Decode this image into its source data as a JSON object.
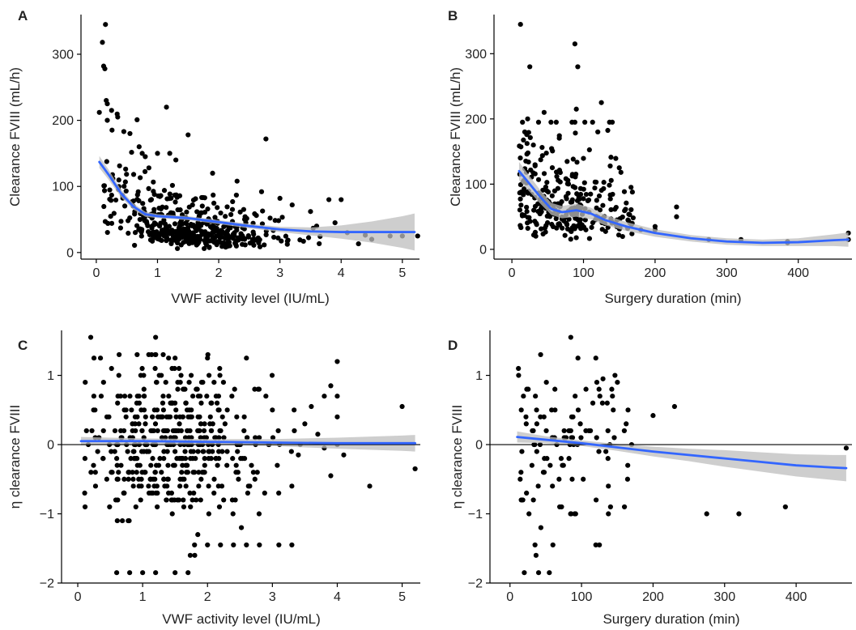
{
  "colors": {
    "points": "#000000",
    "smooth": "#3366ff",
    "band": "#bdbdbd",
    "axis": "#000000"
  },
  "chart_data": [
    {
      "panel": "A",
      "type": "scatter",
      "xlabel": "VWF activity level (IU/mL)",
      "ylabel": "Clearance FVIII (mL/h)",
      "xlim": [
        -0.25,
        5.28
      ],
      "ylim": [
        -10,
        360
      ],
      "xticks": [
        0,
        1,
        2,
        3,
        4,
        5
      ],
      "yticks": [
        0,
        100,
        200,
        300
      ],
      "zero_line": false,
      "grid": false,
      "legend": "none",
      "generated_points": {
        "count": 470,
        "x_dist": "gamma",
        "x_min": 0.03,
        "x_max": 5.2,
        "y_model": "clearance_vwf",
        "y_min": 6,
        "y_max": 230,
        "seed": 11
      },
      "points": [
        [
          0.15,
          345
        ],
        [
          0.1,
          318
        ],
        [
          0.12,
          282
        ],
        [
          0.14,
          278
        ],
        [
          0.05,
          212
        ],
        [
          0.18,
          225
        ],
        [
          0.25,
          215
        ],
        [
          0.35,
          205
        ],
        [
          0.18,
          200
        ],
        [
          0.45,
          183
        ],
        [
          0.55,
          180
        ],
        [
          0.7,
          160
        ],
        [
          0.75,
          150
        ],
        [
          0.8,
          145
        ],
        [
          1.5,
          178
        ],
        [
          1.0,
          150
        ],
        [
          1.3,
          140
        ],
        [
          1.2,
          150
        ],
        [
          1.9,
          120
        ],
        [
          2.3,
          108
        ],
        [
          2.7,
          92
        ],
        [
          3.0,
          82
        ],
        [
          3.2,
          72
        ],
        [
          3.5,
          62
        ],
        [
          3.8,
          80
        ],
        [
          4.0,
          80
        ],
        [
          4.5,
          20
        ],
        [
          4.8,
          25
        ],
        [
          5.0,
          25
        ],
        [
          5.25,
          25
        ],
        [
          3.6,
          40
        ],
        [
          3.9,
          45
        ],
        [
          4.1,
          30
        ]
      ],
      "smooth": [
        [
          0.05,
          137
        ],
        [
          0.2,
          118
        ],
        [
          0.4,
          90
        ],
        [
          0.6,
          70
        ],
        [
          0.8,
          58
        ],
        [
          1.0,
          55
        ],
        [
          1.5,
          52
        ],
        [
          2.0,
          46
        ],
        [
          2.5,
          40
        ],
        [
          3.0,
          35
        ],
        [
          3.5,
          32
        ],
        [
          4.0,
          31
        ],
        [
          4.5,
          31
        ],
        [
          5.0,
          31
        ],
        [
          5.2,
          31
        ]
      ],
      "band_half_width": [
        [
          0.05,
          9
        ],
        [
          0.5,
          5
        ],
        [
          1.0,
          3
        ],
        [
          2.0,
          3
        ],
        [
          3.0,
          4
        ],
        [
          3.5,
          6
        ],
        [
          4.0,
          10
        ],
        [
          4.5,
          16
        ],
        [
          5.0,
          24
        ],
        [
          5.2,
          28
        ]
      ]
    },
    {
      "panel": "B",
      "type": "scatter",
      "xlabel": "Surgery duration (min)",
      "ylabel": "Clearance FVIII (mL/h)",
      "xlim": [
        -25,
        475
      ],
      "ylim": [
        -15,
        360
      ],
      "xticks": [
        0,
        100,
        200,
        300,
        400
      ],
      "yticks": [
        0,
        100,
        200,
        300
      ],
      "zero_line": false,
      "grid": false,
      "legend": "none",
      "generated_points": {
        "count": 300,
        "x_dist": "surgery",
        "x_min": 10,
        "x_max": 170,
        "y_model": "clearance_surgery",
        "y_min": 6,
        "y_max": 195,
        "seed": 23
      },
      "points": [
        [
          12,
          345
        ],
        [
          88,
          315
        ],
        [
          92,
          280
        ],
        [
          25,
          280
        ],
        [
          90,
          215
        ],
        [
          125,
          225
        ],
        [
          45,
          210
        ],
        [
          88,
          195
        ],
        [
          120,
          180
        ],
        [
          150,
          125
        ],
        [
          18,
          180
        ],
        [
          22,
          200
        ],
        [
          30,
          160
        ],
        [
          230,
          65
        ],
        [
          230,
          50
        ],
        [
          200,
          30
        ],
        [
          200,
          35
        ],
        [
          275,
          15
        ],
        [
          320,
          15
        ],
        [
          385,
          10
        ],
        [
          385,
          12
        ],
        [
          470,
          15
        ],
        [
          470,
          25
        ],
        [
          165,
          40
        ],
        [
          180,
          30
        ]
      ],
      "smooth": [
        [
          10,
          120
        ],
        [
          25,
          100
        ],
        [
          40,
          80
        ],
        [
          55,
          62
        ],
        [
          70,
          57
        ],
        [
          90,
          60
        ],
        [
          110,
          55
        ],
        [
          130,
          45
        ],
        [
          160,
          35
        ],
        [
          200,
          25
        ],
        [
          250,
          17
        ],
        [
          300,
          12
        ],
        [
          350,
          10
        ],
        [
          400,
          11
        ],
        [
          450,
          14
        ],
        [
          470,
          15
        ]
      ],
      "band_half_width": [
        [
          10,
          14
        ],
        [
          50,
          9
        ],
        [
          90,
          10
        ],
        [
          130,
          8
        ],
        [
          180,
          6
        ],
        [
          250,
          5
        ],
        [
          300,
          5
        ],
        [
          350,
          5
        ],
        [
          400,
          6
        ],
        [
          450,
          9
        ],
        [
          470,
          11
        ]
      ]
    },
    {
      "panel": "C",
      "type": "scatter",
      "xlabel": "VWF activity level (IU/mL)",
      "ylabel": "η clearance FVIII",
      "xlim": [
        -0.25,
        5.28
      ],
      "ylim": [
        -2,
        1.65
      ],
      "xticks": [
        0,
        1,
        2,
        3,
        4,
        5
      ],
      "yticks": [
        -2,
        -1,
        0,
        1
      ],
      "zero_line": true,
      "grid": false,
      "legend": "none",
      "generated_points": {
        "count": 460,
        "x_dist": "gamma",
        "x_min": 0.02,
        "x_max": 4.0,
        "y_model": "eta",
        "y_min": -1.85,
        "y_max": 1.3,
        "seed": 37
      },
      "points": [
        [
          0.2,
          1.55
        ],
        [
          1.2,
          1.55
        ],
        [
          0.6,
          -1.85
        ],
        [
          0.8,
          -1.85
        ],
        [
          1.0,
          -1.85
        ],
        [
          1.2,
          -1.85
        ],
        [
          1.5,
          -1.85
        ],
        [
          1.7,
          -1.85
        ],
        [
          2.0,
          -1.45
        ],
        [
          2.2,
          -1.45
        ],
        [
          2.4,
          -1.45
        ],
        [
          2.6,
          -1.45
        ],
        [
          2.8,
          -1.45
        ],
        [
          3.1,
          -1.45
        ],
        [
          3.3,
          -1.45
        ],
        [
          1.8,
          -1.45
        ],
        [
          3.8,
          0.7
        ],
        [
          3.9,
          0.85
        ],
        [
          4.0,
          0.7
        ],
        [
          4.1,
          -0.15
        ],
        [
          5.0,
          0.55
        ],
        [
          5.2,
          -0.35
        ],
        [
          4.5,
          -0.6
        ],
        [
          3.9,
          -0.45
        ],
        [
          2.6,
          1.25
        ],
        [
          2.0,
          1.25
        ],
        [
          1.4,
          1.25
        ],
        [
          1.5,
          1.25
        ],
        [
          0.25,
          1.25
        ],
        [
          0.35,
          1.25
        ],
        [
          3.5,
          0.3
        ],
        [
          3.6,
          0.55
        ],
        [
          3.0,
          0.5
        ],
        [
          2.9,
          0.7
        ],
        [
          3.3,
          -0.6
        ],
        [
          3.4,
          -0.15
        ],
        [
          3.7,
          0.15
        ],
        [
          3.8,
          -0.05
        ]
      ],
      "smooth": [
        [
          0.05,
          0.05
        ],
        [
          1.0,
          0.05
        ],
        [
          2.0,
          0.04
        ],
        [
          3.0,
          0.03
        ],
        [
          4.0,
          0.02
        ],
        [
          5.0,
          0.02
        ],
        [
          5.2,
          0.02
        ]
      ],
      "band_half_width": [
        [
          0.05,
          0.06
        ],
        [
          1.0,
          0.04
        ],
        [
          2.0,
          0.04
        ],
        [
          3.0,
          0.05
        ],
        [
          4.0,
          0.08
        ],
        [
          5.0,
          0.11
        ],
        [
          5.2,
          0.12
        ]
      ]
    },
    {
      "panel": "D",
      "type": "scatter",
      "xlabel": "Surgery duration (min)",
      "ylabel": "η clearance FVIII",
      "xlim": [
        -28,
        478
      ],
      "ylim": [
        -2,
        1.65
      ],
      "xticks": [
        0,
        100,
        200,
        300,
        400
      ],
      "yticks": [
        -2,
        -1,
        0,
        1
      ],
      "zero_line": true,
      "grid": false,
      "legend": "none",
      "generated_points": {
        "count": 110,
        "x_dist": "surgery",
        "x_min": 10,
        "x_max": 165,
        "y_model": "eta",
        "y_min": -1.85,
        "y_max": 1.3,
        "seed": 53
      },
      "points": [
        [
          85,
          1.55
        ],
        [
          95,
          1.25
        ],
        [
          120,
          1.25
        ],
        [
          130,
          0.95
        ],
        [
          20,
          -1.85
        ],
        [
          40,
          -1.85
        ],
        [
          55,
          -1.85
        ],
        [
          35,
          -1.45
        ],
        [
          60,
          -1.45
        ],
        [
          120,
          -1.45
        ],
        [
          125,
          -1.45
        ],
        [
          275,
          -1.0
        ],
        [
          320,
          -1.0
        ],
        [
          385,
          -0.9
        ],
        [
          470,
          -0.05
        ],
        [
          230,
          0.55
        ],
        [
          200,
          0.42
        ],
        [
          170,
          0.0
        ],
        [
          160,
          -0.9
        ]
      ],
      "smooth": [
        [
          10,
          0.11
        ],
        [
          50,
          0.07
        ],
        [
          100,
          0.02
        ],
        [
          150,
          -0.04
        ],
        [
          200,
          -0.1
        ],
        [
          250,
          -0.15
        ],
        [
          300,
          -0.2
        ],
        [
          350,
          -0.25
        ],
        [
          400,
          -0.3
        ],
        [
          450,
          -0.33
        ],
        [
          470,
          -0.34
        ]
      ],
      "band_half_width": [
        [
          10,
          0.08
        ],
        [
          50,
          0.05
        ],
        [
          100,
          0.04
        ],
        [
          150,
          0.05
        ],
        [
          200,
          0.07
        ],
        [
          250,
          0.09
        ],
        [
          300,
          0.12
        ],
        [
          350,
          0.14
        ],
        [
          400,
          0.16
        ],
        [
          450,
          0.18
        ],
        [
          470,
          0.19
        ]
      ]
    }
  ]
}
